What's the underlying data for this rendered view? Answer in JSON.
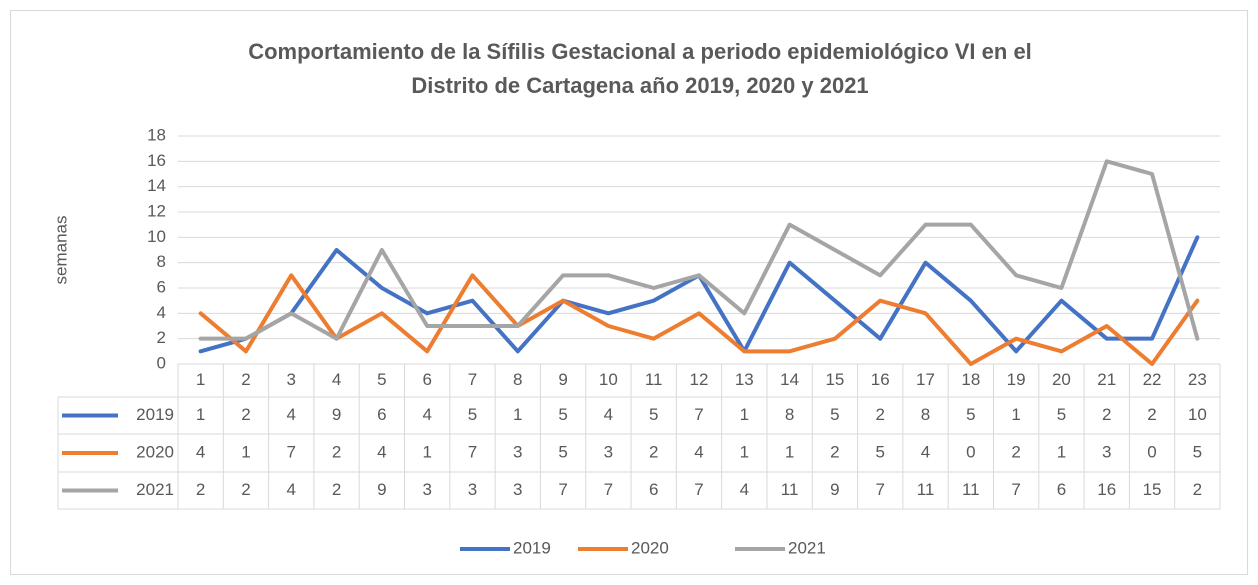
{
  "chart_data": {
    "type": "line",
    "title": [
      "Comportamiento de la Sífilis Gestacional a periodo epidemiológico VI en el",
      "Distrito de Cartagena año 2019, 2020 y 2021"
    ],
    "y_label": "semanas",
    "categories": [
      "1",
      "2",
      "3",
      "4",
      "5",
      "6",
      "7",
      "8",
      "9",
      "10",
      "11",
      "12",
      "13",
      "14",
      "15",
      "16",
      "17",
      "18",
      "19",
      "20",
      "21",
      "22",
      "23"
    ],
    "series": [
      {
        "name": "2019",
        "color": "#4472c4",
        "values": [
          1,
          2,
          4,
          9,
          6,
          4,
          5,
          1,
          5,
          4,
          5,
          7,
          1,
          8,
          5,
          2,
          8,
          5,
          1,
          5,
          2,
          2,
          10
        ]
      },
      {
        "name": "2020",
        "color": "#ed7d31",
        "values": [
          4,
          1,
          7,
          2,
          4,
          1,
          7,
          3,
          5,
          3,
          2,
          4,
          1,
          1,
          2,
          5,
          4,
          0,
          2,
          1,
          3,
          0,
          5
        ]
      },
      {
        "name": "2021",
        "color": "#a5a5a5",
        "values": [
          2,
          2,
          4,
          2,
          9,
          3,
          3,
          3,
          7,
          7,
          6,
          7,
          4,
          11,
          9,
          7,
          11,
          11,
          7,
          6,
          16,
          15,
          2
        ]
      }
    ],
    "ylim": [
      0,
      18
    ],
    "yticks": [
      0,
      2,
      4,
      6,
      8,
      10,
      12,
      14,
      16,
      18
    ],
    "grid": true,
    "legend": "bottom",
    "data_table": true
  }
}
